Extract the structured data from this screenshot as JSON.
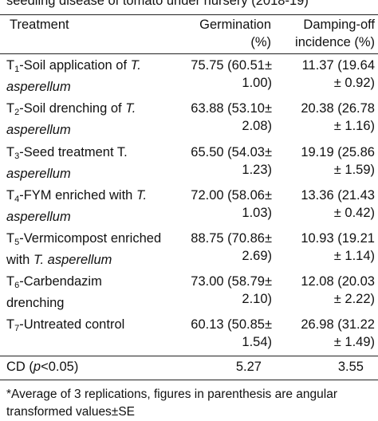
{
  "caption": "seedling disease of tomato under nursery (2018-19)",
  "header": {
    "treatment": "Treatment",
    "germination_line1": "Germination",
    "germination_line2": "(%)",
    "damping_line1": "Damping-off",
    "damping_line2": "incidence (%)"
  },
  "rows": [
    {
      "prefix": "T",
      "sub": "1",
      "name_line1": "-Soil application of ",
      "name_italic1": "T.",
      "name_line2_italic": "asperellum",
      "name_line2_plain": "",
      "germ_line1": "75.75 (60.51±",
      "germ_line2": "1.00)",
      "damp_line1": "11.37 (19.64",
      "damp_line2": "± 0.92)"
    },
    {
      "prefix": "T",
      "sub": "2",
      "name_line1": "-Soil drenching of ",
      "name_italic1": "T.",
      "name_line2_italic": "asperellum",
      "name_line2_plain": "",
      "germ_line1": "63.88 (53.10±",
      "germ_line2": "2.08)",
      "damp_line1": "20.38 (26.78",
      "damp_line2": "± 1.16)"
    },
    {
      "prefix": "T",
      "sub": "3",
      "name_line1": "-Seed treatment T.",
      "name_italic1": "",
      "name_line2_italic": "asperellum",
      "name_line2_plain": "",
      "germ_line1": "65.50 (54.03±",
      "germ_line2": "1.23)",
      "damp_line1": "19.19 (25.86",
      "damp_line2": "± 1.59)"
    },
    {
      "prefix": "T",
      "sub": "4",
      "name_line1": "-FYM  enriched with ",
      "name_italic1": "T.",
      "name_line2_italic": "asperellum",
      "name_line2_plain": "",
      "germ_line1": "72.00 (58.06±",
      "germ_line2": "1.03)",
      "damp_line1": "13.36 (21.43",
      "damp_line2": "± 0.42)"
    },
    {
      "prefix": "T",
      "sub": "5",
      "name_line1": "-Vermicompost enriched",
      "name_italic1": "",
      "name_line2_plain": "with ",
      "name_line2_italic": "T. asperellum",
      "germ_line1": "88.75 (70.86±",
      "germ_line2": "2.69)",
      "damp_line1": "10.93 (19.21",
      "damp_line2": "± 1.14)"
    },
    {
      "prefix": "T",
      "sub": "6",
      "name_line1": "-Carbendazim",
      "name_italic1": "",
      "name_line2_plain": "drenching",
      "name_line2_italic": "",
      "germ_line1": "73.00 (58.79±",
      "germ_line2": "2.10)",
      "damp_line1": "12.08 (20.03",
      "damp_line2": "± 2.22)"
    },
    {
      "prefix": "T",
      "sub": "7",
      "name_line1": "-Untreated control",
      "name_italic1": "",
      "name_line2_plain": "",
      "name_line2_italic": "",
      "germ_line1": "60.13 (50.85±",
      "germ_line2": "1.54)",
      "damp_line1": "26.98 (31.22",
      "damp_line2": "± 1.49)"
    }
  ],
  "cd_row": {
    "label_plain": "CD (",
    "label_italic": "p",
    "label_rest": "<0.05)",
    "germ": "5.27",
    "damp": "3.55"
  },
  "footnote": "*Average of 3 replications, figures in parenthesis are angular transformed values±SE"
}
